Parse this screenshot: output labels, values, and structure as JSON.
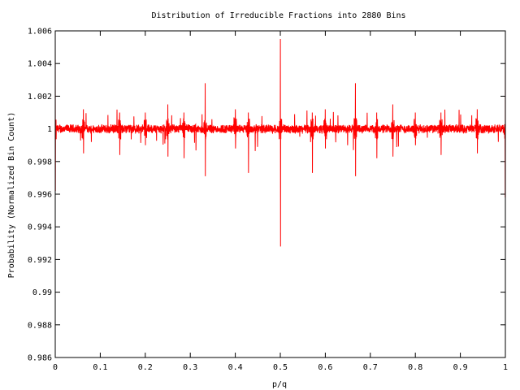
{
  "chart_data": {
    "type": "line",
    "title": "Distribution of Irreducible Fractions into 2880 Bins",
    "xlabel": "p/q",
    "ylabel": "Probability (Normalized Bin Count)",
    "xlim": [
      0,
      1
    ],
    "ylim": [
      0.986,
      1.006
    ],
    "xticks": [
      0,
      0.1,
      0.2,
      0.3,
      0.4,
      0.5,
      0.6,
      0.7,
      0.8,
      0.9,
      1
    ],
    "xtick_labels": [
      "0",
      "0.1",
      "0.2",
      "0.3",
      "0.4",
      "0.5",
      "0.6",
      "0.7",
      "0.8",
      "0.9",
      "1"
    ],
    "yticks": [
      0.986,
      0.988,
      0.99,
      0.992,
      0.994,
      0.996,
      0.998,
      1,
      1.002,
      1.004,
      1.006
    ],
    "ytick_labels": [
      "0.986",
      "0.988",
      "0.99",
      "0.992",
      "0.994",
      "0.996",
      "0.998",
      "1",
      "1.002",
      "1.004",
      "1.006"
    ],
    "grid": false,
    "legend": "none",
    "series_color": "#ff0000",
    "bins": 2880,
    "baseline": 1.0,
    "noise_amplitude": 0.0003,
    "features": [
      {
        "x": 0.0,
        "high": 1.0056,
        "low": 0.9962
      },
      {
        "x": 0.333,
        "high": 1.0028,
        "low": 0.9971
      },
      {
        "x": 0.5,
        "high": 1.0055,
        "low": 0.9928
      },
      {
        "x": 0.667,
        "high": 1.0028,
        "low": 0.9971
      },
      {
        "x": 1.0,
        "high": 1.0057,
        "low": 0.9958
      },
      {
        "x": 0.25,
        "high": 1.0015,
        "low": 0.9983
      },
      {
        "x": 0.75,
        "high": 1.0015,
        "low": 0.9983
      },
      {
        "x": 0.2,
        "high": 1.001,
        "low": 0.999
      },
      {
        "x": 0.4,
        "high": 1.0012,
        "low": 0.9988
      },
      {
        "x": 0.6,
        "high": 1.0012,
        "low": 0.9988
      },
      {
        "x": 0.8,
        "high": 1.001,
        "low": 0.999
      },
      {
        "x": 0.429,
        "high": 1.001,
        "low": 0.9973
      },
      {
        "x": 0.571,
        "high": 1.001,
        "low": 0.9973
      },
      {
        "x": 0.143,
        "high": 1.001,
        "low": 0.9984
      },
      {
        "x": 0.857,
        "high": 1.001,
        "low": 0.9984
      },
      {
        "x": 0.286,
        "high": 1.001,
        "low": 0.9982
      },
      {
        "x": 0.714,
        "high": 1.001,
        "low": 0.9982
      },
      {
        "x": 0.0625,
        "high": 1.0012,
        "low": 0.9985
      },
      {
        "x": 0.9375,
        "high": 1.0012,
        "low": 0.9985
      }
    ]
  }
}
